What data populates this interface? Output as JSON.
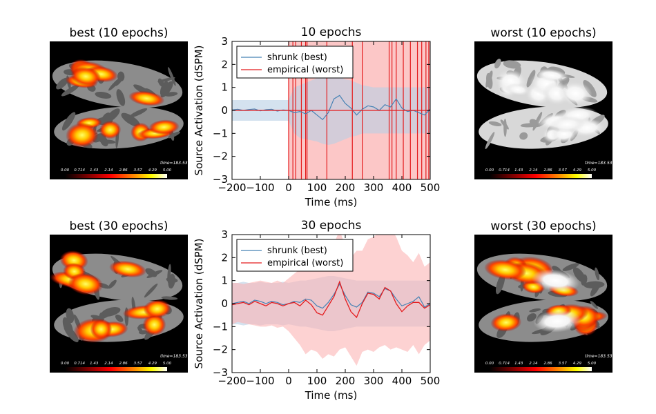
{
  "brains": [
    {
      "title": "best (10 epochs)",
      "style": "hot",
      "time_label": "time=183.53 ms"
    },
    {
      "title": "worst (10 epochs)",
      "style": "white",
      "time_label": "time=183.53 ms"
    },
    {
      "title": "best (30 epochs)",
      "style": "hot",
      "time_label": "time=183.53 ms"
    },
    {
      "title": "worst (30 epochs)",
      "style": "hotwhite",
      "time_label": "time=183.53 ms"
    }
  ],
  "colorbar_ticks": [
    "0.00",
    "0.714",
    "1.43",
    "2.14",
    "2.86",
    "3.57",
    "4.29",
    "5.00"
  ],
  "colors": {
    "shrunk": "#4682b4",
    "empirical": "#e41a1c",
    "shrunk_band": "#b8cfe5",
    "empirical_band": "#fbb4b4"
  },
  "chart_data": [
    {
      "type": "line",
      "title": "10 epochs",
      "xlabel": "Time (ms)",
      "ylabel": "Source Activation (dSPM)",
      "xlim": [
        -200,
        500
      ],
      "ylim": [
        -3,
        3
      ],
      "xticks": [
        "−200",
        "−100",
        "0",
        "100",
        "200",
        "300",
        "400",
        "500"
      ],
      "yticks": [
        "3",
        "2",
        "1",
        "0",
        "−1",
        "−2",
        "−3"
      ],
      "legend": {
        "position": "top-left"
      },
      "x": [
        -200,
        -180,
        -160,
        -140,
        -120,
        -100,
        -80,
        -60,
        -40,
        -20,
        0,
        20,
        40,
        60,
        80,
        100,
        120,
        140,
        160,
        180,
        200,
        220,
        240,
        260,
        280,
        300,
        320,
        340,
        360,
        380,
        400,
        420,
        440,
        460,
        480,
        500
      ],
      "series": [
        {
          "name": "shrunk (best)",
          "values": [
            0.02,
            0.05,
            0.0,
            0.04,
            0.06,
            -0.02,
            0.03,
            0.05,
            -0.03,
            0.02,
            0.0,
            -0.1,
            -0.05,
            -0.15,
            0.0,
            -0.2,
            -0.4,
            -0.1,
            0.5,
            0.65,
            0.3,
            0.1,
            -0.2,
            0.05,
            0.2,
            0.15,
            0.0,
            0.25,
            0.15,
            0.5,
            0.1,
            -0.05,
            0.0,
            -0.1,
            -0.2,
            0.05
          ],
          "band_low": [
            -0.45,
            -0.45,
            -0.45,
            -0.45,
            -0.45,
            -0.45,
            -0.45,
            -0.45,
            -0.45,
            -0.45,
            -0.45,
            -1.0,
            -1.2,
            -1.25,
            -1.3,
            -1.35,
            -1.45,
            -1.5,
            -1.45,
            -1.35,
            -1.25,
            -1.15,
            -1.1,
            -1.0,
            -1.0,
            -1.0,
            -1.0,
            -1.0,
            -1.0,
            -1.0,
            -1.0,
            -1.0,
            -1.0,
            -1.0,
            -1.0,
            -1.0
          ],
          "band_high": [
            0.45,
            0.45,
            0.45,
            0.45,
            0.45,
            0.45,
            0.45,
            0.45,
            0.45,
            0.45,
            0.45,
            1.0,
            1.1,
            1.2,
            1.3,
            1.4,
            1.5,
            1.6,
            1.55,
            1.45,
            1.35,
            1.3,
            1.2,
            1.1,
            1.05,
            1.0,
            1.0,
            1.0,
            1.0,
            1.0,
            1.0,
            1.0,
            1.0,
            1.0,
            1.0,
            1.0
          ]
        },
        {
          "name": "empirical (worst)",
          "values": [
            0,
            0,
            0,
            0,
            0,
            0,
            0,
            0,
            0,
            0,
            0,
            0,
            0,
            0,
            0,
            0,
            0,
            0,
            0,
            0,
            0,
            0,
            0,
            0,
            0,
            0,
            0,
            0,
            0,
            0,
            0,
            0,
            0,
            0,
            0,
            0
          ],
          "band_from_x": 0,
          "band_low": -3,
          "band_high": 3,
          "vlines": [
            0,
            15,
            25,
            45,
            60,
            65,
            135,
            225,
            260,
            355,
            365,
            380,
            405,
            430,
            455,
            470,
            485,
            495
          ]
        }
      ]
    },
    {
      "type": "line",
      "title": "30 epochs",
      "xlabel": "Time (ms)",
      "ylabel": "Source Activation (dSPM)",
      "xlim": [
        -200,
        500
      ],
      "ylim": [
        -3,
        3
      ],
      "xticks": [
        "−200",
        "−100",
        "0",
        "100",
        "200",
        "300",
        "400",
        "500"
      ],
      "yticks": [
        "3",
        "2",
        "1",
        "0",
        "−1",
        "−2",
        "−3"
      ],
      "legend": {
        "position": "top-left"
      },
      "x": [
        -200,
        -180,
        -160,
        -140,
        -120,
        -100,
        -80,
        -60,
        -40,
        -20,
        0,
        20,
        40,
        60,
        80,
        100,
        120,
        140,
        160,
        180,
        200,
        220,
        240,
        260,
        280,
        300,
        320,
        340,
        360,
        380,
        400,
        420,
        440,
        460,
        480,
        500
      ],
      "series": [
        {
          "name": "shrunk (best)",
          "values": [
            0.0,
            0.05,
            0.1,
            0.0,
            0.15,
            0.1,
            0.0,
            0.1,
            0.05,
            -0.05,
            0.0,
            0.1,
            0.05,
            0.2,
            0.15,
            -0.1,
            -0.2,
            0.05,
            0.4,
            0.85,
            0.35,
            -0.05,
            -0.15,
            0.05,
            0.5,
            0.45,
            0.3,
            0.65,
            0.55,
            0.2,
            -0.1,
            0.0,
            0.1,
            0.3,
            -0.15,
            0.0
          ],
          "band_low": [
            -0.9,
            -0.9,
            -0.95,
            -0.9,
            -0.9,
            -0.95,
            -0.9,
            -0.9,
            -0.9,
            -0.95,
            -0.9,
            -0.95,
            -1.0,
            -1.0,
            -1.05,
            -1.1,
            -1.15,
            -1.2,
            -1.2,
            -1.15,
            -1.1,
            -1.05,
            -1.0,
            -1.0,
            -1.0,
            -1.0,
            -1.0,
            -1.0,
            -1.0,
            -1.0,
            -1.0,
            -1.0,
            -1.0,
            -1.0,
            -1.0,
            -1.0
          ],
          "band_high": [
            0.9,
            0.9,
            0.95,
            0.9,
            0.9,
            0.95,
            0.9,
            0.9,
            0.9,
            0.95,
            0.9,
            0.95,
            1.0,
            1.0,
            1.05,
            1.1,
            1.15,
            1.2,
            1.2,
            1.15,
            1.1,
            1.05,
            1.0,
            1.0,
            1.0,
            1.0,
            1.0,
            1.0,
            1.0,
            1.0,
            1.0,
            1.0,
            1.0,
            1.0,
            1.0,
            1.0
          ]
        },
        {
          "name": "empirical (worst)",
          "values": [
            -0.05,
            0.0,
            0.05,
            -0.05,
            0.1,
            0.0,
            -0.1,
            0.05,
            0.0,
            -0.1,
            0.0,
            0.05,
            -0.1,
            0.15,
            -0.05,
            -0.4,
            -0.5,
            -0.1,
            0.3,
            0.95,
            0.2,
            -0.35,
            -0.6,
            0.0,
            0.45,
            0.4,
            0.2,
            0.7,
            0.55,
            0.0,
            -0.35,
            -0.1,
            0.05,
            0.05,
            -0.2,
            -0.05
          ],
          "band_low": [
            -0.9,
            -0.8,
            -0.85,
            -0.9,
            -0.95,
            -1.0,
            -1.0,
            -0.95,
            -1.05,
            -1.0,
            -1.2,
            -1.5,
            -1.8,
            -2.2,
            -2.0,
            -2.1,
            -2.4,
            -2.2,
            -2.3,
            -2.0,
            -1.9,
            -2.3,
            -2.7,
            -2.1,
            -2.0,
            -2.1,
            -1.9,
            -1.8,
            -2.0,
            -1.9,
            -2.0,
            -2.1,
            -1.8,
            -2.2,
            -1.8,
            -1.6
          ],
          "band_high": [
            0.9,
            0.9,
            0.85,
            0.9,
            0.95,
            1.0,
            0.95,
            0.9,
            1.0,
            0.9,
            1.1,
            1.3,
            1.5,
            1.6,
            1.5,
            1.4,
            1.6,
            1.8,
            2.6,
            3.2,
            2.5,
            2.0,
            2.3,
            2.3,
            2.8,
            2.9,
            3.1,
            3.3,
            3.3,
            2.9,
            2.3,
            2.1,
            1.8,
            2.2,
            1.6,
            1.8
          ]
        }
      ]
    }
  ]
}
